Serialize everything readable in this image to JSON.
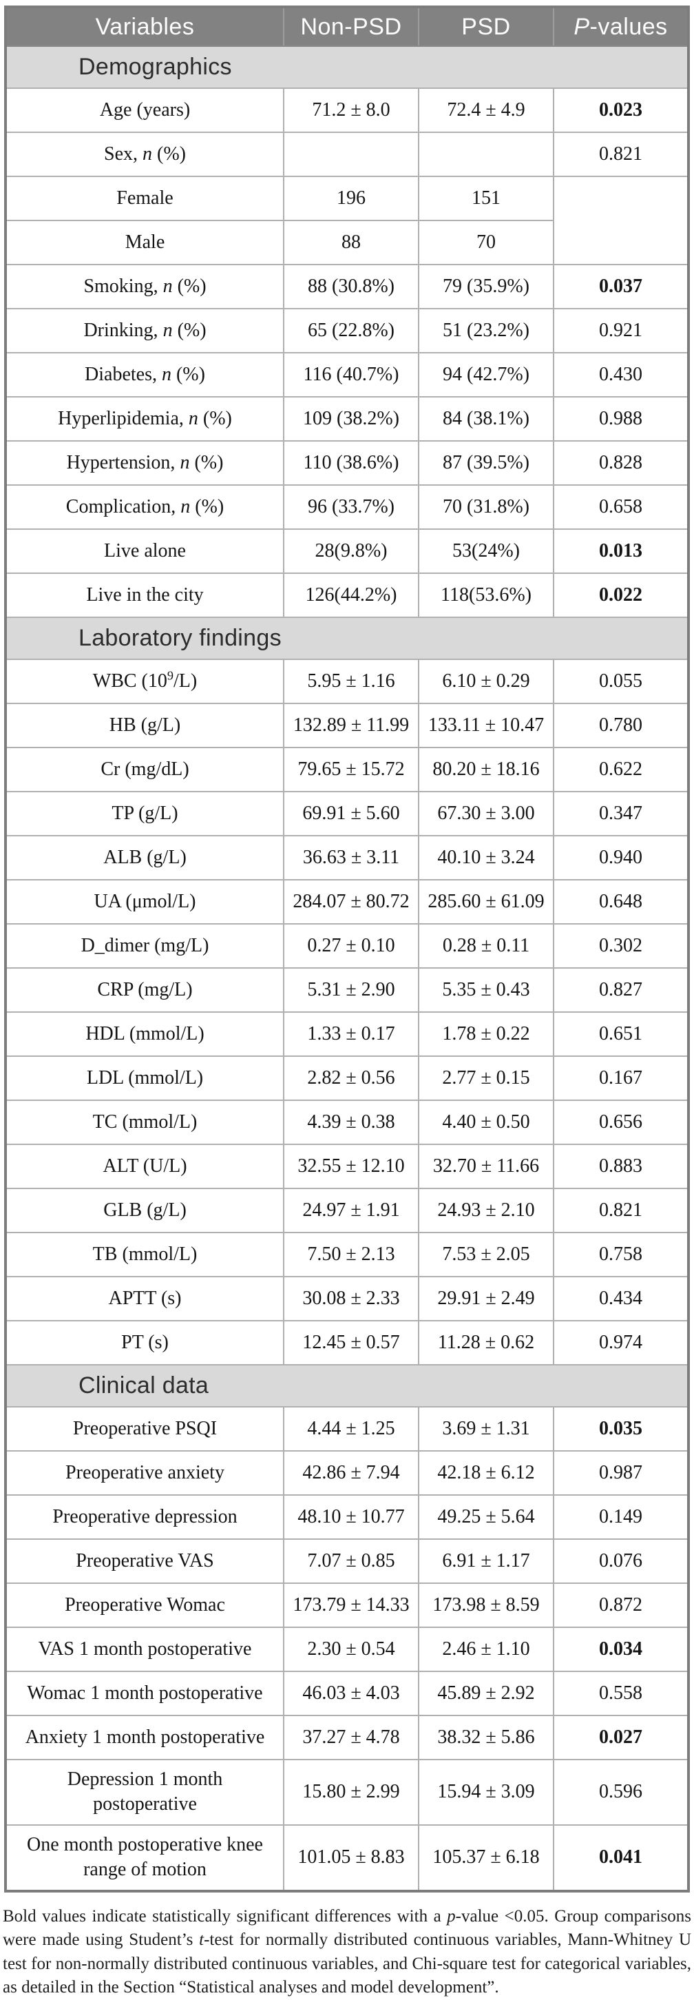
{
  "colors": {
    "header_bg": "#828282",
    "header_fg": "#fdfdfd",
    "section_bg": "#d9d9d9",
    "inner_border": "#b0b0b0",
    "outer_border": "#7c7c7c"
  },
  "table": {
    "header": {
      "variables": "Variables",
      "nonpsd": "Non-PSD",
      "psd": "PSD",
      "pvalues": "*P*-values"
    },
    "sections": [
      {
        "title": "Demographics",
        "rows": [
          {
            "label": "Age (years)",
            "nonpsd": "71.2 ± 8.0",
            "psd": "72.4 ± 4.9",
            "p": "0.023",
            "bold": true
          },
          {
            "label": "Sex, *n* (%)",
            "nonpsd": "",
            "psd": "",
            "p": "0.821",
            "bold": false
          },
          {
            "label": "Female",
            "nonpsd": "196",
            "psd": "151",
            "p": "",
            "bold": false,
            "p_rowspan": 2
          },
          {
            "label": "Male",
            "nonpsd": "88",
            "psd": "70",
            "p_skip": true
          },
          {
            "label": "Smoking, *n* (%)",
            "nonpsd": "88 (30.8%)",
            "psd": "79 (35.9%)",
            "p": "0.037",
            "bold": true
          },
          {
            "label": "Drinking, *n* (%)",
            "nonpsd": "65 (22.8%)",
            "psd": "51 (23.2%)",
            "p": "0.921",
            "bold": false
          },
          {
            "label": "Diabetes, *n* (%)",
            "nonpsd": "116 (40.7%)",
            "psd": "94 (42.7%)",
            "p": "0.430",
            "bold": false
          },
          {
            "label": "Hyperlipidemia, *n* (%)",
            "nonpsd": "109 (38.2%)",
            "psd": "84 (38.1%)",
            "p": "0.988",
            "bold": false
          },
          {
            "label": "Hypertension, *n* (%)",
            "nonpsd": "110 (38.6%)",
            "psd": "87 (39.5%)",
            "p": "0.828",
            "bold": false
          },
          {
            "label": "Complication, *n* (%)",
            "nonpsd": "96 (33.7%)",
            "psd": "70 (31.8%)",
            "p": "0.658",
            "bold": false
          },
          {
            "label": "Live alone",
            "nonpsd": "28(9.8%)",
            "psd": "53(24%)",
            "p": "0.013",
            "bold": true
          },
          {
            "label": "Live in the city",
            "nonpsd": "126(44.2%)",
            "psd": "118(53.6%)",
            "p": "0.022",
            "bold": true
          }
        ]
      },
      {
        "title": "Laboratory findings",
        "rows": [
          {
            "label": "WBC (10^9^/L)",
            "nonpsd": "5.95 ± 1.16",
            "psd": "6.10 ± 0.29",
            "p": "0.055",
            "bold": false
          },
          {
            "label": "HB (g/L)",
            "nonpsd": "132.89 ± 11.99",
            "psd": "133.11 ± 10.47",
            "p": "0.780",
            "bold": false
          },
          {
            "label": "Cr (mg/dL)",
            "nonpsd": "79.65 ± 15.72",
            "psd": "80.20 ± 18.16",
            "p": "0.622",
            "bold": false
          },
          {
            "label": "TP (g/L)",
            "nonpsd": "69.91 ± 5.60",
            "psd": "67.30 ± 3.00",
            "p": "0.347",
            "bold": false
          },
          {
            "label": "ALB (g/L)",
            "nonpsd": "36.63 ± 3.11",
            "psd": "40.10 ± 3.24",
            "p": "0.940",
            "bold": false
          },
          {
            "label": "UA (μmol/L)",
            "nonpsd": "284.07 ± 80.72",
            "psd": "285.60 ± 61.09",
            "p": "0.648",
            "bold": false
          },
          {
            "label": "D_dimer (mg/L)",
            "nonpsd": "0.27 ± 0.10",
            "psd": "0.28 ± 0.11",
            "p": "0.302",
            "bold": false
          },
          {
            "label": "CRP (mg/L)",
            "nonpsd": "5.31 ± 2.90",
            "psd": "5.35 ± 0.43",
            "p": "0.827",
            "bold": false
          },
          {
            "label": "HDL (mmol/L)",
            "nonpsd": "1.33 ± 0.17",
            "psd": "1.78 ± 0.22",
            "p": "0.651",
            "bold": false
          },
          {
            "label": "LDL (mmol/L)",
            "nonpsd": "2.82 ± 0.56",
            "psd": "2.77 ± 0.15",
            "p": "0.167",
            "bold": false
          },
          {
            "label": "TC (mmol/L)",
            "nonpsd": "4.39 ± 0.38",
            "psd": "4.40 ± 0.50",
            "p": "0.656",
            "bold": false
          },
          {
            "label": "ALT (U/L)",
            "nonpsd": "32.55 ± 12.10",
            "psd": "32.70 ± 11.66",
            "p": "0.883",
            "bold": false
          },
          {
            "label": "GLB (g/L)",
            "nonpsd": "24.97 ± 1.91",
            "psd": "24.93 ± 2.10",
            "p": "0.821",
            "bold": false
          },
          {
            "label": "TB (mmol/L)",
            "nonpsd": "7.50 ± 2.13",
            "psd": "7.53 ± 2.05",
            "p": "0.758",
            "bold": false
          },
          {
            "label": "APTT (s)",
            "nonpsd": "30.08 ± 2.33",
            "psd": "29.91 ± 2.49",
            "p": "0.434",
            "bold": false
          },
          {
            "label": "PT (s)",
            "nonpsd": "12.45 ± 0.57",
            "psd": "11.28 ± 0.62",
            "p": "0.974",
            "bold": false
          }
        ]
      },
      {
        "title": "Clinical data",
        "rows": [
          {
            "label": "Preoperative PSQI",
            "nonpsd": "4.44 ± 1.25",
            "psd": "3.69 ± 1.31",
            "p": "0.035",
            "bold": true
          },
          {
            "label": "Preoperative anxiety",
            "nonpsd": "42.86 ± 7.94",
            "psd": "42.18 ± 6.12",
            "p": "0.987",
            "bold": false
          },
          {
            "label": "Preoperative depression",
            "nonpsd": "48.10 ± 10.77",
            "psd": "49.25 ± 5.64",
            "p": "0.149",
            "bold": false
          },
          {
            "label": "Preoperative VAS",
            "nonpsd": "7.07 ± 0.85",
            "psd": "6.91 ± 1.17",
            "p": "0.076",
            "bold": false
          },
          {
            "label": "Preoperative Womac",
            "nonpsd": "173.79 ± 14.33",
            "psd": "173.98 ± 8.59",
            "p": "0.872",
            "bold": false
          },
          {
            "label": "VAS 1 month postoperative",
            "nonpsd": "2.30 ± 0.54",
            "psd": "2.46 ± 1.10",
            "p": "0.034",
            "bold": true
          },
          {
            "label": "Womac 1 month postoperative",
            "nonpsd": "46.03 ± 4.03",
            "psd": "45.89 ± 2.92",
            "p": "0.558",
            "bold": false
          },
          {
            "label": "Anxiety 1 month postoperative",
            "nonpsd": "37.27 ± 4.78",
            "psd": "38.32 ± 5.86",
            "p": "0.027",
            "bold": true
          },
          {
            "label": "Depression 1 month postoperative",
            "nonpsd": "15.80 ± 2.99",
            "psd": "15.94 ± 3.09",
            "p": "0.596",
            "bold": false
          },
          {
            "label": "One month postoperative knee range of motion",
            "nonpsd": "101.05 ± 8.83",
            "psd": "105.37 ± 6.18",
            "p": "0.041",
            "bold": true
          }
        ]
      }
    ]
  },
  "footnote": {
    "text": "Bold values indicate statistically significant differences with a *p*-value <0.05. Group comparisons were made using Student’s *t*-test for normally distributed continuous variables, Mann-Whitney U test for non-normally distributed continuous variables, and Chi-square test for categorical variables, as detailed in the Section “Statistical analyses and model development”."
  }
}
